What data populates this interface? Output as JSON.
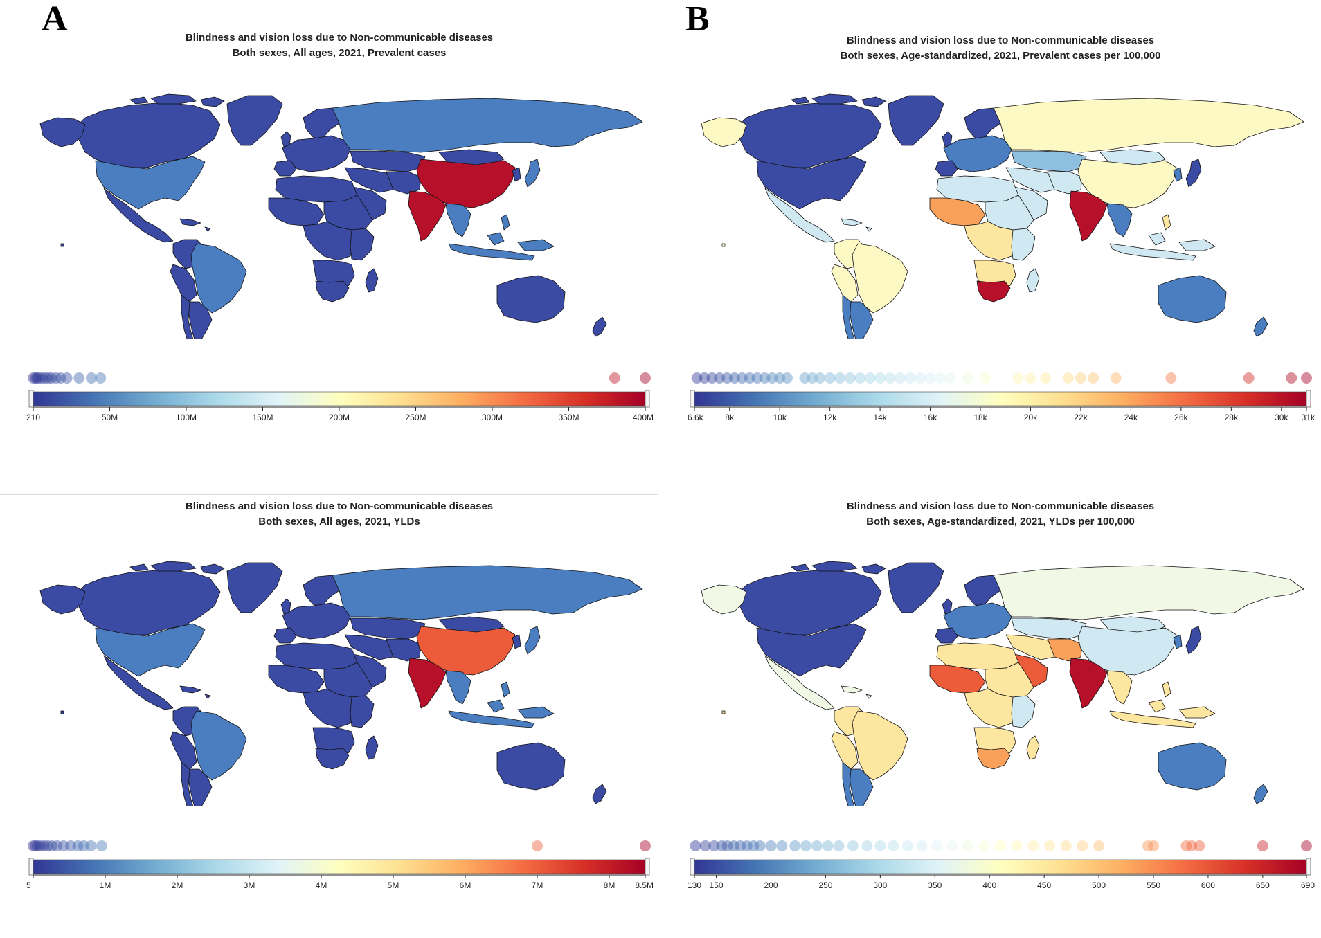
{
  "figure_labels": {
    "A": "A",
    "B": "B"
  },
  "palette": [
    "#313695",
    "#4575b4",
    "#74add1",
    "#abd9e9",
    "#e0f3f8",
    "#ffffbf",
    "#fee090",
    "#fdae61",
    "#f46d43",
    "#d73027",
    "#a50026"
  ],
  "map_colors": {
    "ocean": "#ffffff",
    "border": "#111111",
    "very_low": "#3b4ba4",
    "low": "#4a7ec0",
    "mid_low": "#8fbfe0",
    "light_blue": "#cfe8f2",
    "pale": "#f2f8e6",
    "pale_yellow": "#fdf9c4",
    "yellow": "#fde6a0",
    "orange": "#f9a05a",
    "red_orange": "#ec5b3a",
    "dark_red": "#b7102a"
  },
  "panels": [
    {
      "id": "A-top",
      "title_line1": "Blindness and vision loss due to Non-communicable diseases",
      "title_line2": "Both sexes, All ages, 2021, Prevalent cases",
      "scheme": "A1",
      "legend": {
        "min": 210,
        "max": 400000000,
        "ticks": [
          {
            "v": 210,
            "label": "210"
          },
          {
            "v": 50000000,
            "label": "50M"
          },
          {
            "v": 100000000,
            "label": "100M"
          },
          {
            "v": 150000000,
            "label": "150M"
          },
          {
            "v": 200000000,
            "label": "200M"
          },
          {
            "v": 250000000,
            "label": "250M"
          },
          {
            "v": 300000000,
            "label": "300M"
          },
          {
            "v": 350000000,
            "label": "350M"
          },
          {
            "v": 400000000,
            "label": "400M"
          }
        ],
        "dots": [
          1000,
          1500000,
          2500000,
          4000000,
          6000000,
          8000000,
          10000000,
          12000000,
          15000000,
          18000000,
          22000000,
          30000000,
          38000000,
          44000000,
          380000000,
          400000000
        ]
      }
    },
    {
      "id": "B-top",
      "title_line1": "Blindness and vision loss due to Non-communicable diseases",
      "title_line2": "Both sexes, Age-standardized, 2021, Prevalent cases per 100,000",
      "scheme": "B1",
      "legend": {
        "min": 6600,
        "max": 31000,
        "ticks": [
          {
            "v": 6600,
            "label": "6.6k"
          },
          {
            "v": 8000,
            "label": "8k"
          },
          {
            "v": 10000,
            "label": "10k"
          },
          {
            "v": 12000,
            "label": "12k"
          },
          {
            "v": 14000,
            "label": "14k"
          },
          {
            "v": 16000,
            "label": "16k"
          },
          {
            "v": 18000,
            "label": "18k"
          },
          {
            "v": 20000,
            "label": "20k"
          },
          {
            "v": 22000,
            "label": "22k"
          },
          {
            "v": 24000,
            "label": "24k"
          },
          {
            "v": 26000,
            "label": "26k"
          },
          {
            "v": 28000,
            "label": "28k"
          },
          {
            "v": 30000,
            "label": "30k"
          },
          {
            "v": 31000,
            "label": "31k"
          }
        ],
        "dots": [
          6700,
          7000,
          7300,
          7600,
          7900,
          8200,
          8500,
          8800,
          9100,
          9400,
          9700,
          10000,
          10300,
          11000,
          11300,
          11600,
          12000,
          12400,
          12800,
          13200,
          13600,
          14000,
          14400,
          14800,
          15200,
          15600,
          16000,
          16400,
          16800,
          17500,
          18200,
          19500,
          20000,
          20600,
          21500,
          22000,
          22500,
          23400,
          25600,
          28700,
          30400,
          31000
        ]
      }
    },
    {
      "id": "A-bottom",
      "title_line1": "Blindness and vision loss due to Non-communicable diseases",
      "title_line2": "Both sexes, All ages, 2021, YLDs",
      "scheme": "A2",
      "legend": {
        "min": 5,
        "max": 8500000,
        "ticks": [
          {
            "v": 5,
            "label": "5"
          },
          {
            "v": 1000000,
            "label": "1M"
          },
          {
            "v": 2000000,
            "label": "2M"
          },
          {
            "v": 3000000,
            "label": "3M"
          },
          {
            "v": 4000000,
            "label": "4M"
          },
          {
            "v": 5000000,
            "label": "5M"
          },
          {
            "v": 6000000,
            "label": "6M"
          },
          {
            "v": 7000000,
            "label": "7M"
          },
          {
            "v": 8000000,
            "label": "8M"
          },
          {
            "v": 8500000,
            "label": "8.5M"
          }
        ],
        "dots": [
          20,
          30000,
          60000,
          100000,
          150000,
          200000,
          260000,
          330000,
          420000,
          520000,
          620000,
          700000,
          800000,
          950000,
          7000000,
          8500000
        ]
      }
    },
    {
      "id": "B-bottom",
      "title_line1": "Blindness and vision loss due to Non-communicable diseases",
      "title_line2": "Both sexes, Age-standardized, 2021, YLDs per 100,000",
      "scheme": "B2",
      "legend": {
        "min": 130,
        "max": 690,
        "ticks": [
          {
            "v": 130,
            "label": "130"
          },
          {
            "v": 150,
            "label": "150"
          },
          {
            "v": 200,
            "label": "200"
          },
          {
            "v": 250,
            "label": "250"
          },
          {
            "v": 300,
            "label": "300"
          },
          {
            "v": 350,
            "label": "350"
          },
          {
            "v": 400,
            "label": "400"
          },
          {
            "v": 450,
            "label": "450"
          },
          {
            "v": 500,
            "label": "500"
          },
          {
            "v": 550,
            "label": "550"
          },
          {
            "v": 600,
            "label": "600"
          },
          {
            "v": 650,
            "label": "650"
          },
          {
            "v": 690,
            "label": "690"
          }
        ],
        "dots": [
          131,
          140,
          148,
          155,
          160,
          166,
          172,
          178,
          184,
          190,
          200,
          210,
          222,
          232,
          242,
          252,
          262,
          275,
          288,
          300,
          312,
          325,
          338,
          352,
          366,
          380,
          395,
          410,
          425,
          440,
          455,
          470,
          485,
          500,
          545,
          550,
          580,
          585,
          592,
          650,
          690
        ]
      }
    }
  ]
}
